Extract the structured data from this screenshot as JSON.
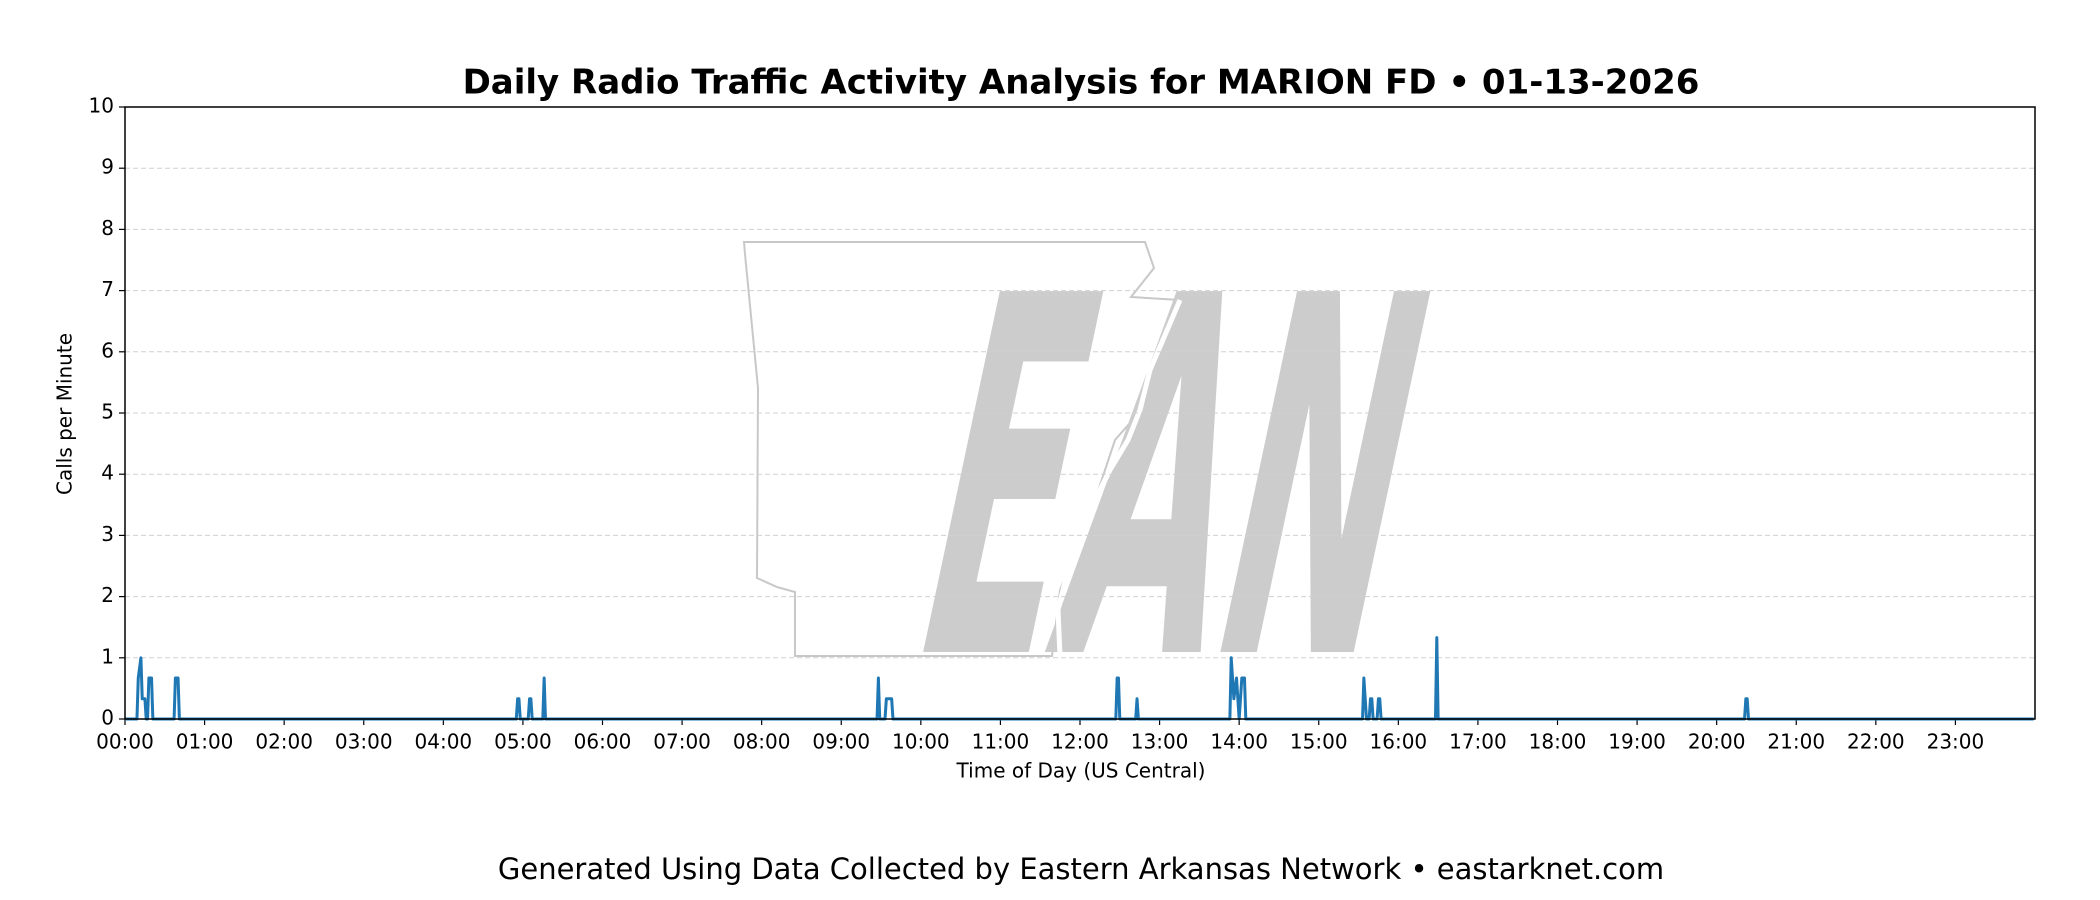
{
  "chart_data": {
    "type": "line",
    "title": "Daily Radio Traffic Activity Analysis for MARION FD • 01-13-2026",
    "xlabel": "Time of Day (US Central)",
    "ylabel": "Calls per Minute",
    "footer": "Generated Using Data Collected by Eastern Arkansas Network • eastarknet.com",
    "watermark": "EAN",
    "color": "#1f77b4",
    "grid": true,
    "xlim": [
      0,
      1440
    ],
    "ylim": [
      0,
      10
    ],
    "yticks": [
      0,
      1,
      2,
      3,
      4,
      5,
      6,
      7,
      8,
      9,
      10
    ],
    "xticks": [
      {
        "value": 0,
        "label": "00:00"
      },
      {
        "value": 60,
        "label": "01:00"
      },
      {
        "value": 120,
        "label": "02:00"
      },
      {
        "value": 180,
        "label": "03:00"
      },
      {
        "value": 240,
        "label": "04:00"
      },
      {
        "value": 300,
        "label": "05:00"
      },
      {
        "value": 360,
        "label": "06:00"
      },
      {
        "value": 420,
        "label": "07:00"
      },
      {
        "value": 480,
        "label": "08:00"
      },
      {
        "value": 540,
        "label": "09:00"
      },
      {
        "value": 600,
        "label": "10:00"
      },
      {
        "value": 660,
        "label": "11:00"
      },
      {
        "value": 720,
        "label": "12:00"
      },
      {
        "value": 780,
        "label": "13:00"
      },
      {
        "value": 840,
        "label": "14:00"
      },
      {
        "value": 900,
        "label": "15:00"
      },
      {
        "value": 960,
        "label": "16:00"
      },
      {
        "value": 1020,
        "label": "17:00"
      },
      {
        "value": 1080,
        "label": "18:00"
      },
      {
        "value": 1140,
        "label": "19:00"
      },
      {
        "value": 1200,
        "label": "20:00"
      },
      {
        "value": 1260,
        "label": "21:00"
      },
      {
        "value": 1320,
        "label": "22:00"
      },
      {
        "value": 1380,
        "label": "23:00"
      }
    ],
    "x": [
      0,
      9,
      10,
      12,
      13,
      15,
      16,
      17,
      18,
      20,
      21,
      37,
      38,
      40,
      41,
      295,
      296,
      297,
      298,
      304,
      305,
      306,
      307,
      315,
      316,
      317,
      567,
      568,
      569,
      573,
      574,
      578,
      579,
      747,
      748,
      749,
      750,
      762,
      763,
      764,
      833,
      834,
      836,
      838,
      840,
      842,
      844,
      845,
      933,
      934,
      936,
      938,
      939,
      940,
      941,
      944,
      945,
      946,
      947,
      988,
      989,
      990,
      1221,
      1222,
      1223,
      1224,
      1439
    ],
    "values": [
      0,
      0,
      0.67,
      1,
      0.33,
      0.33,
      0,
      0,
      0.67,
      0.67,
      0,
      0,
      0.67,
      0.67,
      0,
      0,
      0.33,
      0.33,
      0,
      0,
      0.33,
      0.33,
      0,
      0,
      0.67,
      0,
      0,
      0.67,
      0,
      0,
      0.33,
      0.33,
      0,
      0,
      0.67,
      0.67,
      0,
      0,
      0.33,
      0,
      0,
      1,
      0.33,
      0.67,
      0,
      0.67,
      0.67,
      0,
      0,
      0.67,
      0,
      0,
      0.33,
      0.33,
      0,
      0,
      0.33,
      0.33,
      0,
      0,
      1.33,
      0,
      0,
      0.33,
      0.33,
      0,
      0
    ]
  }
}
